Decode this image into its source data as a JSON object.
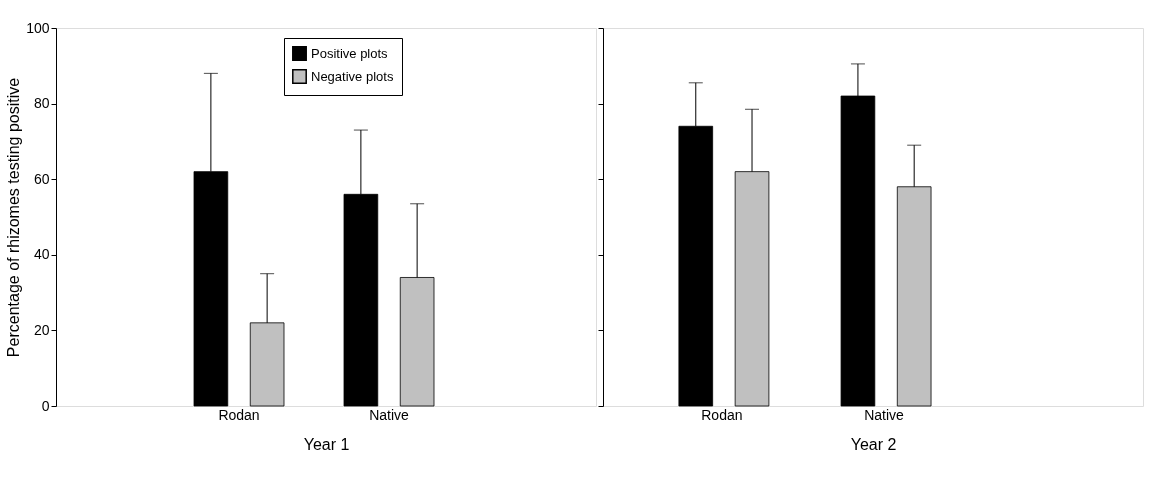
{
  "chart_data": [
    {
      "type": "bar",
      "xlabel": "Year 1",
      "ylabel": "Percentage of rhizomes testing positive",
      "categories": [
        "Rodan",
        "Native"
      ],
      "series": [
        {
          "name": "Positive plots",
          "color": "#000000",
          "values": [
            62,
            56
          ],
          "errors": [
            [
              62,
              88
            ],
            [
              56,
              73
            ]
          ]
        },
        {
          "name": "Negative plots",
          "color": "#c0c0c0",
          "values": [
            22,
            34
          ],
          "errors": [
            [
              22,
              35
            ],
            [
              34,
              53.5
            ]
          ]
        }
      ],
      "ylim": [
        0,
        100
      ],
      "yticks": [
        0,
        20,
        40,
        60,
        80,
        100
      ],
      "grid": false,
      "legend": "top right"
    },
    {
      "type": "bar",
      "xlabel": "Year 2",
      "categories": [
        "Rodan",
        "Native"
      ],
      "series": [
        {
          "name": "Positive plots",
          "color": "#000000",
          "values": [
            74,
            82
          ],
          "errors": [
            [
              74,
              85.5
            ],
            [
              82,
              90.5
            ]
          ]
        },
        {
          "name": "Negative plots",
          "color": "#c0c0c0",
          "values": [
            62,
            58
          ],
          "errors": [
            [
              62,
              78.5
            ],
            [
              58,
              69
            ]
          ]
        }
      ],
      "ylim": [
        0,
        100
      ],
      "yticks": [
        {
          "value": 0,
          "label": null
        },
        {
          "value": 20,
          "label": null
        },
        {
          "value": 40,
          "label": null
        },
        {
          "value": 60,
          "label": null
        },
        {
          "value": 80,
          "label": null
        },
        {
          "value": 100,
          "label": null
        }
      ],
      "grid": false,
      "tick_labels": "x",
      "legend": false
    }
  ]
}
